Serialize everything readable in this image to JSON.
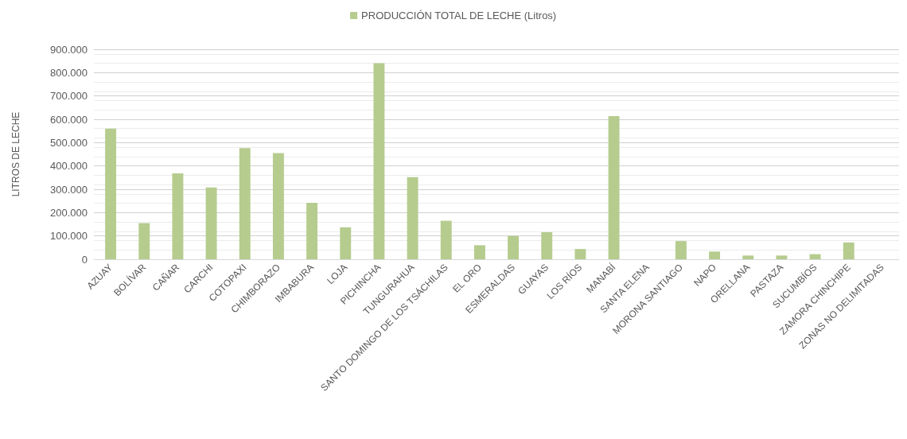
{
  "chart_data": {
    "type": "bar",
    "ylabel": "LITROS DE LECHE",
    "categories": [
      "AZUAY",
      "BOLÍVAR",
      "CAÑAR",
      "CARCHI",
      "COTOPAXI",
      "CHIMBORAZO",
      "IMBABURA",
      "LOJA",
      "PICHINCHA",
      "TUNGURAHUA",
      "SANTO DOMINGO DE LOS TSÁCHILAS",
      "EL ORO",
      "ESMERALDAS",
      "GUAYAS",
      "LOS RÍOS",
      "MANABÍ",
      "SANTA ELENA",
      "MORONA SANTIAGO",
      "NAPO",
      "ORELLANA",
      "PASTAZA",
      "SUCUMBÍOS",
      "ZAMORA CHINCHIPE",
      "ZONAS NO DELIMITADAS"
    ],
    "series": [
      {
        "name": "PRODUCCIÓN TOTAL DE LECHE (Litros)",
        "color": "#b5cc8e",
        "values": [
          560000,
          155000,
          368000,
          308000,
          476000,
          455000,
          242000,
          137000,
          840000,
          352000,
          165000,
          60000,
          100000,
          116000,
          44000,
          614000,
          0,
          78000,
          33000,
          16000,
          16000,
          22000,
          72000,
          0
        ]
      }
    ],
    "ylim": [
      0,
      900000
    ],
    "yticks": [
      {
        "value": 0,
        "label": "0"
      },
      {
        "value": 100000,
        "label": "100.000"
      },
      {
        "value": 200000,
        "label": "200.000"
      },
      {
        "value": 300000,
        "label": "300.000"
      },
      {
        "value": 400000,
        "label": "400.000"
      },
      {
        "value": 500000,
        "label": "500.000"
      },
      {
        "value": 600000,
        "label": "600.000"
      },
      {
        "value": 700000,
        "label": "700.000"
      },
      {
        "value": 800000,
        "label": "800.000"
      },
      {
        "value": 900000,
        "label": "900.000"
      }
    ],
    "grid": "y",
    "legend": "top"
  }
}
